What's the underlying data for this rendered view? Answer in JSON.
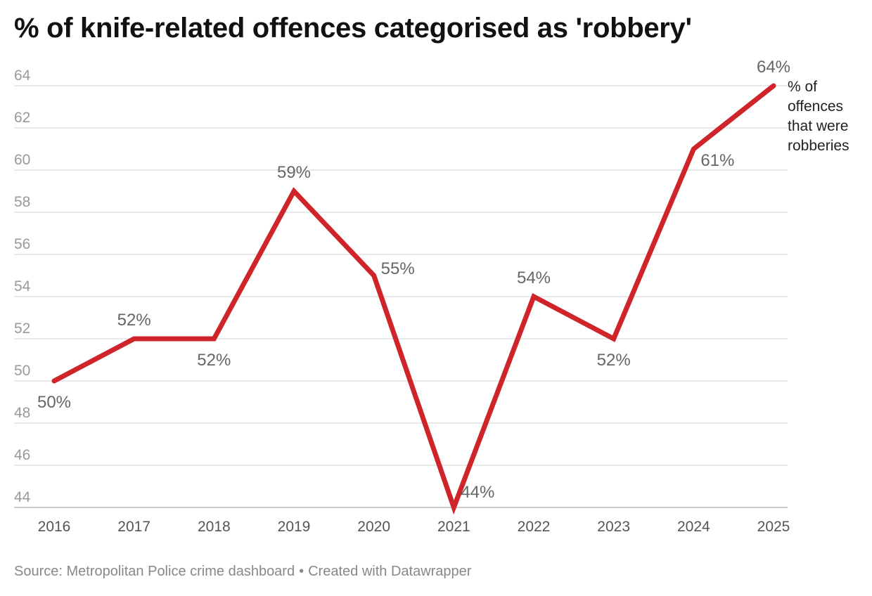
{
  "title": "% of knife-related offences categorised as 'robbery'",
  "chart_data": {
    "type": "line",
    "title": "% of knife-related offences categorised as 'robbery'",
    "xlabel": "",
    "ylabel": "",
    "categories": [
      "2016",
      "2017",
      "2018",
      "2019",
      "2020",
      "2021",
      "2022",
      "2023",
      "2024",
      "2025"
    ],
    "series": [
      {
        "name": "% of offences that were robberies",
        "values": [
          50,
          52,
          52,
          59,
          55,
          44,
          54,
          52,
          61,
          64
        ],
        "labels": [
          "50%",
          "52%",
          "52%",
          "59%",
          "55%",
          "44%",
          "54%",
          "52%",
          "61%",
          "64%"
        ],
        "label_positions": [
          "below",
          "above",
          "below",
          "above",
          "right",
          "right",
          "above",
          "below",
          "right",
          "above"
        ],
        "legend_lines": [
          "% of",
          "offences",
          "that were",
          "robberies"
        ],
        "color": "#d0242b"
      }
    ],
    "y_ticks": [
      44,
      46,
      48,
      50,
      52,
      54,
      56,
      58,
      60,
      62,
      64
    ],
    "ylim": [
      44,
      64
    ],
    "grid": true
  },
  "footer": {
    "source": "Source: Metropolitan Police crime dashboard",
    "separator": "•",
    "credit": "Created with Datawrapper"
  }
}
